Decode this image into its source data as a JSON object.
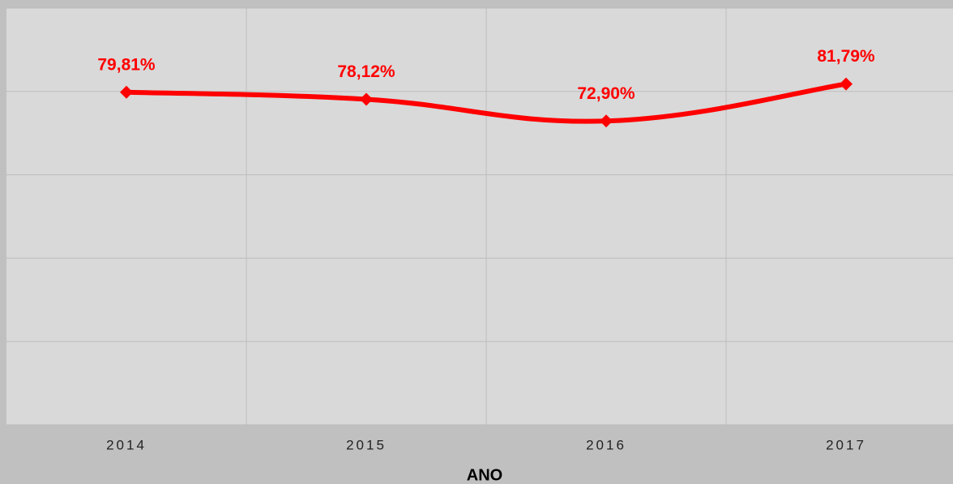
{
  "chart_data": {
    "type": "line",
    "x_label": "ANO",
    "categories": [
      "2014",
      "2015",
      "2016",
      "2017"
    ],
    "series": [
      {
        "name": null,
        "color": "#ff0000",
        "values": [
          79.81,
          78.12,
          72.9,
          81.79
        ],
        "value_labels": [
          "79,81%",
          "78,12%",
          "72,90%",
          "81,79%"
        ]
      }
    ],
    "ylim": [
      0,
      100
    ],
    "yticks": [
      0,
      20,
      40,
      60,
      80,
      100
    ],
    "grid": true
  }
}
